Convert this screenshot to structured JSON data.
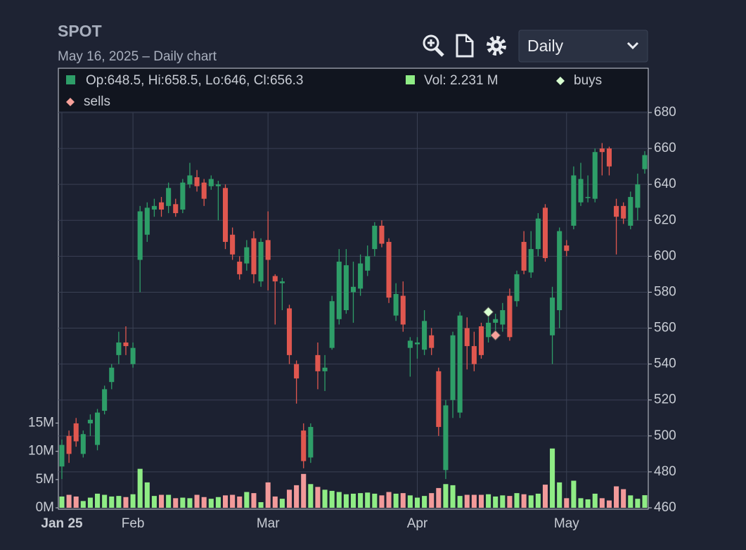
{
  "header": {
    "title": "SPOT",
    "subtitle": "May 16, 2025 – Daily chart",
    "interval_select": "Daily"
  },
  "chart_data": {
    "type": "candlestick",
    "legend_ohlc": "Op:648.5, Hi:658.5, Lo:646, Cl:656.3",
    "legend_volume": "Vol: 2.231 M",
    "categories": [
      "Jan 25",
      null,
      null,
      null,
      null,
      null,
      null,
      null,
      null,
      null,
      "Feb",
      null,
      null,
      null,
      null,
      null,
      null,
      null,
      null,
      null,
      null,
      null,
      null,
      null,
      null,
      null,
      null,
      null,
      null,
      "Mar",
      null,
      null,
      null,
      null,
      null,
      null,
      null,
      null,
      null,
      null,
      null,
      null,
      null,
      null,
      null,
      null,
      null,
      null,
      null,
      null,
      "Apr",
      null,
      null,
      null,
      null,
      null,
      null,
      null,
      null,
      null,
      null,
      null,
      null,
      null,
      null,
      null,
      null,
      null,
      null,
      null,
      null,
      "May",
      null,
      null,
      null,
      null,
      null,
      null,
      null,
      null,
      null,
      null,
      null
    ],
    "open": [
      483,
      500,
      507,
      490,
      507,
      495,
      514,
      530,
      545,
      552,
      540,
      598,
      612,
      626,
      630,
      628,
      629,
      626,
      640,
      644,
      641,
      639,
      639,
      638,
      612,
      597,
      596,
      610,
      586,
      609,
      589,
      585,
      571,
      540,
      503,
      488,
      545,
      536,
      549,
      565,
      570,
      580,
      582,
      592,
      604,
      617,
      608,
      567,
      578,
      549,
      551,
      548,
      556,
      536,
      481,
      520,
      513,
      560,
      550,
      561,
      555,
      563,
      562,
      578,
      575,
      608,
      591,
      604,
      627,
      556,
      570,
      606,
      617,
      630,
      633,
      632,
      660,
      660,
      628,
      628,
      617,
      627,
      648.5
    ],
    "high": [
      498,
      503,
      510,
      503,
      512,
      515,
      528,
      540,
      558,
      561,
      552,
      628,
      630,
      632,
      633,
      641,
      632,
      643,
      652,
      648,
      643,
      645,
      642,
      640,
      616,
      600,
      609,
      614,
      610,
      625,
      590,
      588,
      573,
      542,
      507,
      507,
      552,
      545,
      578,
      604,
      604,
      597,
      601,
      606,
      619,
      620,
      610,
      585,
      586,
      555,
      555,
      570,
      560,
      538,
      520,
      558,
      569,
      566,
      558,
      563,
      568,
      568,
      574,
      582,
      592,
      614,
      614,
      624,
      629,
      583,
      616,
      609,
      650,
      652,
      645,
      660,
      663,
      661,
      632,
      630,
      636,
      646,
      658.5
    ],
    "low": [
      476,
      485,
      494,
      488,
      500,
      492,
      512,
      526,
      540,
      545,
      538,
      580,
      608,
      622,
      622,
      624,
      622,
      624,
      638,
      636,
      628,
      637,
      620,
      604,
      598,
      587,
      592,
      585,
      583,
      581,
      562,
      570,
      540,
      518,
      482,
      485,
      526,
      525,
      548,
      562,
      568,
      563,
      578,
      589,
      600,
      605,
      574,
      564,
      558,
      533,
      543,
      545,
      545,
      500,
      476,
      510,
      510,
      537,
      536,
      543,
      552,
      556,
      558,
      553,
      572,
      590,
      588,
      600,
      597,
      540,
      560,
      600,
      615,
      628,
      630,
      630,
      645,
      645,
      601,
      618,
      615,
      620,
      646
    ],
    "close": [
      495,
      490,
      497,
      501,
      509,
      513,
      526,
      538,
      552,
      550,
      549,
      625,
      627,
      628,
      626,
      638,
      624,
      641,
      645,
      639,
      632,
      643,
      640,
      608,
      601,
      590,
      605,
      590,
      608,
      598,
      586,
      586,
      545,
      532,
      486,
      505,
      536,
      538,
      575,
      597,
      595,
      583,
      596,
      600,
      617,
      607,
      577,
      579,
      562,
      553,
      552,
      564,
      549,
      505,
      517,
      556,
      567,
      550,
      540,
      545,
      563,
      565,
      570,
      555,
      590,
      592,
      604,
      621,
      599,
      577,
      614,
      603,
      645,
      643,
      633,
      658,
      658,
      650,
      622,
      621,
      633,
      640,
      656.3
    ],
    "volume": [
      2.0,
      2.3,
      2.0,
      1.2,
      1.8,
      2.5,
      2.3,
      2.0,
      2.1,
      1.9,
      2.4,
      6.9,
      4.5,
      2.1,
      2.3,
      2.3,
      1.7,
      1.8,
      1.7,
      2.3,
      1.9,
      1.6,
      1.9,
      2.2,
      2.3,
      2.0,
      2.8,
      2.6,
      1.0,
      4.5,
      2.0,
      1.6,
      3.2,
      4.0,
      6.0,
      4.2,
      3.7,
      3.2,
      3.0,
      2.8,
      2.4,
      2.5,
      2.6,
      2.7,
      2.5,
      2.2,
      2.8,
      2.5,
      2.6,
      2.2,
      1.8,
      2.1,
      2.6,
      3.5,
      4.2,
      4.0,
      2.1,
      2.3,
      2.3,
      2.3,
      2.4,
      2.0,
      2.2,
      2.1,
      2.6,
      2.4,
      2.2,
      2.5,
      4.1,
      10.5,
      4.5,
      1.7,
      4.8,
      1.7,
      1.5,
      2.5,
      1.7,
      1.3,
      3.8,
      3.3,
      2.2,
      1.6,
      2.231
    ],
    "up_color": "#2e9e68",
    "down_color": "#e0574f",
    "volume_up_color": "#8fec85",
    "volume_down_color": "#f29a9a",
    "markers": [
      {
        "name": "buys",
        "color": "#d8ffd0",
        "x": [
          60
        ],
        "values": [
          569
        ]
      },
      {
        "name": "sells",
        "color": "#f7a19a",
        "x": [
          61
        ],
        "values": [
          556
        ]
      }
    ],
    "ylim": [
      460,
      680
    ],
    "yticks": [
      460,
      480,
      500,
      520,
      540,
      560,
      580,
      600,
      620,
      640,
      660,
      680
    ],
    "volume_lim": [
      0,
      70
    ],
    "volume_ticks": [
      {
        "value": 0,
        "label": "0M"
      },
      {
        "value": 5,
        "label": "5M"
      },
      {
        "value": 10,
        "label": "10M"
      },
      {
        "value": 15,
        "label": "15M"
      }
    ],
    "grid": true
  }
}
